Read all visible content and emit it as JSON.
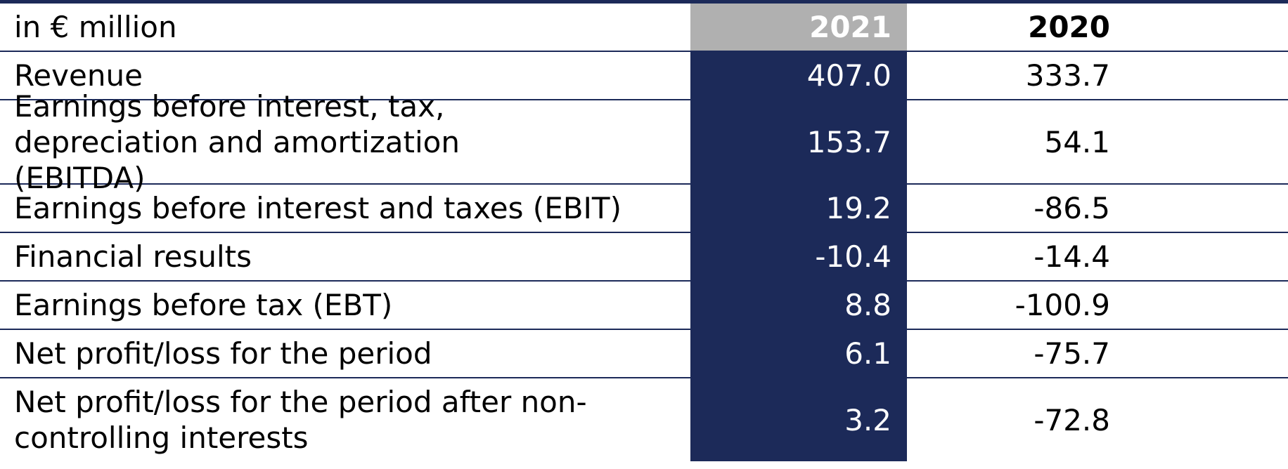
{
  "table": {
    "header": {
      "unit": "in € million",
      "year_current": "2021",
      "year_previous": "2020"
    },
    "rows": [
      {
        "label": "Revenue",
        "current": "407.0",
        "previous": "333.7"
      },
      {
        "label": "Earnings before interest, tax, depreciation and amortization (EBITDA)",
        "current": "153.7",
        "previous": "54.1"
      },
      {
        "label": "Earnings before interest and taxes (EBIT)",
        "current": "19.2",
        "previous": "-86.5"
      },
      {
        "label": "Financial results",
        "current": "-10.4",
        "previous": "-14.4"
      },
      {
        "label": "Earnings before tax (EBT)",
        "current": "8.8",
        "previous": "-100.9"
      },
      {
        "label": "Net profit/loss for the period",
        "current": "6.1",
        "previous": "-75.7"
      },
      {
        "label": "Net profit/loss for the period after non-controlling interests",
        "current": "3.2",
        "previous": "-72.8"
      }
    ],
    "colors": {
      "navy": "#1c2a59",
      "header_gray": "#b0b0b0"
    }
  }
}
